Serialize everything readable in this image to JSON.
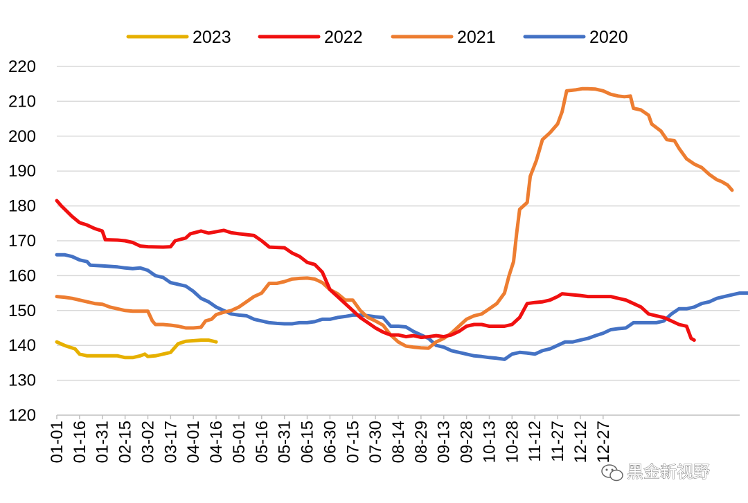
{
  "chart_data": {
    "type": "line",
    "title": "",
    "xlabel": "",
    "ylabel": "",
    "ylim": [
      120,
      220
    ],
    "yticks": [
      120,
      130,
      140,
      150,
      160,
      170,
      180,
      190,
      200,
      210,
      220
    ],
    "x_tick_labels": [
      "01-01",
      "01-16",
      "01-31",
      "02-15",
      "03-02",
      "03-17",
      "04-01",
      "04-16",
      "05-01",
      "05-16",
      "05-31",
      "06-15",
      "06-30",
      "07-15",
      "07-30",
      "08-14",
      "08-29",
      "09-13",
      "09-28",
      "10-13",
      "10-28",
      "11-12",
      "11-27",
      "12-12",
      "12-27"
    ],
    "x_unit": "day of year (0 = 01-01)",
    "grid": true,
    "legend_position": "top",
    "series": [
      {
        "name": "2023",
        "color": "#E6B000",
        "points": [
          [
            0,
            141
          ],
          [
            5,
            140
          ],
          [
            12,
            139
          ],
          [
            15,
            137.5
          ],
          [
            20,
            137
          ],
          [
            30,
            137
          ],
          [
            40,
            137
          ],
          [
            45,
            136.5
          ],
          [
            50,
            136.5
          ],
          [
            55,
            137
          ],
          [
            58,
            137.5
          ],
          [
            60,
            136.8
          ],
          [
            65,
            137
          ],
          [
            70,
            137.5
          ],
          [
            75,
            138
          ],
          [
            80,
            140.5
          ],
          [
            85,
            141.2
          ],
          [
            95,
            141.5
          ],
          [
            100,
            141.5
          ],
          [
            105,
            141
          ]
        ]
      },
      {
        "name": "2022",
        "color": "#F01010",
        "points": [
          [
            0,
            181.5
          ],
          [
            3,
            180
          ],
          [
            10,
            177
          ],
          [
            15,
            175.2
          ],
          [
            20,
            174.5
          ],
          [
            25,
            173.5
          ],
          [
            30,
            172.8
          ],
          [
            32,
            170.3
          ],
          [
            40,
            170.2
          ],
          [
            45,
            170
          ],
          [
            50,
            169.5
          ],
          [
            55,
            168.5
          ],
          [
            60,
            168.3
          ],
          [
            70,
            168.2
          ],
          [
            75,
            168.3
          ],
          [
            78,
            170
          ],
          [
            85,
            170.8
          ],
          [
            88,
            172
          ],
          [
            95,
            172.8
          ],
          [
            100,
            172.2
          ],
          [
            110,
            173
          ],
          [
            115,
            172.3
          ],
          [
            120,
            172
          ],
          [
            130,
            171.5
          ],
          [
            135,
            170
          ],
          [
            140,
            168.2
          ],
          [
            150,
            168
          ],
          [
            155,
            166.5
          ],
          [
            160,
            165.5
          ],
          [
            165,
            163.8
          ],
          [
            170,
            163.2
          ],
          [
            175,
            161
          ],
          [
            180,
            156
          ],
          [
            185,
            154
          ],
          [
            190,
            152
          ],
          [
            195,
            150
          ],
          [
            200,
            148
          ],
          [
            205,
            146.5
          ],
          [
            210,
            145
          ],
          [
            215,
            143.8
          ],
          [
            220,
            143
          ],
          [
            225,
            143
          ],
          [
            230,
            142.5
          ],
          [
            235,
            142.8
          ],
          [
            240,
            142.3
          ],
          [
            245,
            142.5
          ],
          [
            250,
            142.8
          ],
          [
            255,
            142.5
          ],
          [
            260,
            143
          ],
          [
            265,
            144
          ],
          [
            270,
            145.5
          ],
          [
            275,
            146
          ],
          [
            280,
            146
          ],
          [
            285,
            145.5
          ],
          [
            290,
            145.5
          ],
          [
            295,
            145.5
          ],
          [
            300,
            146
          ],
          [
            305,
            148
          ],
          [
            310,
            152
          ],
          [
            315,
            152.3
          ],
          [
            320,
            152.5
          ],
          [
            325,
            153
          ],
          [
            330,
            154
          ],
          [
            333,
            154.8
          ],
          [
            340,
            154.5
          ],
          [
            345,
            154.3
          ],
          [
            350,
            154
          ],
          [
            355,
            154
          ],
          [
            360,
            154
          ],
          [
            365,
            154
          ],
          [
            370,
            153.5
          ],
          [
            375,
            153
          ],
          [
            380,
            152
          ],
          [
            385,
            151
          ],
          [
            390,
            149
          ],
          [
            395,
            148.5
          ],
          [
            400,
            148
          ],
          [
            405,
            147
          ],
          [
            410,
            146
          ],
          [
            415,
            145.5
          ],
          [
            418,
            142
          ],
          [
            420,
            141.5
          ]
        ]
      },
      {
        "name": "2021",
        "color": "#ED7D31",
        "points": [
          [
            0,
            154
          ],
          [
            5,
            153.8
          ],
          [
            10,
            153.5
          ],
          [
            15,
            153
          ],
          [
            20,
            152.5
          ],
          [
            25,
            152
          ],
          [
            30,
            151.8
          ],
          [
            35,
            151
          ],
          [
            40,
            150.5
          ],
          [
            45,
            150
          ],
          [
            50,
            149.8
          ],
          [
            55,
            149.8
          ],
          [
            60,
            149.8
          ],
          [
            63,
            147
          ],
          [
            65,
            146
          ],
          [
            70,
            146
          ],
          [
            75,
            145.8
          ],
          [
            80,
            145.5
          ],
          [
            85,
            145
          ],
          [
            90,
            145
          ],
          [
            95,
            145.2
          ],
          [
            98,
            147
          ],
          [
            102,
            147.5
          ],
          [
            105,
            148.8
          ],
          [
            110,
            149.5
          ],
          [
            115,
            150
          ],
          [
            120,
            151
          ],
          [
            125,
            152.5
          ],
          [
            130,
            154
          ],
          [
            135,
            155
          ],
          [
            140,
            157.8
          ],
          [
            145,
            157.8
          ],
          [
            150,
            158.3
          ],
          [
            155,
            159
          ],
          [
            160,
            159.2
          ],
          [
            165,
            159.3
          ],
          [
            170,
            159
          ],
          [
            175,
            158
          ],
          [
            180,
            156
          ],
          [
            185,
            154.8
          ],
          [
            190,
            153
          ],
          [
            195,
            153
          ],
          [
            200,
            150
          ],
          [
            205,
            148
          ],
          [
            210,
            147
          ],
          [
            215,
            145.8
          ],
          [
            220,
            143
          ],
          [
            225,
            141
          ],
          [
            230,
            139.8
          ],
          [
            235,
            139.5
          ],
          [
            240,
            139.3
          ],
          [
            245,
            139.2
          ],
          [
            250,
            141
          ],
          [
            255,
            142
          ],
          [
            260,
            143.5
          ],
          [
            265,
            145.5
          ],
          [
            270,
            147.5
          ],
          [
            275,
            148.5
          ],
          [
            280,
            149
          ],
          [
            285,
            150.5
          ],
          [
            290,
            152
          ],
          [
            295,
            155
          ],
          [
            298,
            160
          ],
          [
            301,
            164
          ],
          [
            303,
            172
          ],
          [
            305,
            179
          ],
          [
            310,
            181
          ],
          [
            312,
            188.5
          ],
          [
            316,
            193
          ],
          [
            320,
            199
          ],
          [
            325,
            201
          ],
          [
            330,
            203.5
          ],
          [
            333,
            207
          ],
          [
            336,
            213
          ],
          [
            342,
            213.3
          ],
          [
            346,
            213.6
          ],
          [
            350,
            213.6
          ],
          [
            355,
            213.5
          ],
          [
            360,
            213
          ],
          [
            365,
            212
          ],
          [
            370,
            211.5
          ],
          [
            374,
            211.3
          ],
          [
            378,
            211.5
          ],
          [
            380,
            208
          ],
          [
            385,
            207.5
          ],
          [
            390,
            206
          ],
          [
            392,
            203.5
          ],
          [
            398,
            201.5
          ],
          [
            402,
            199
          ],
          [
            407,
            198.7
          ],
          [
            410,
            196.5
          ],
          [
            415,
            193.5
          ],
          [
            420,
            192
          ],
          [
            425,
            191
          ],
          [
            430,
            189
          ],
          [
            435,
            187.5
          ],
          [
            438,
            187
          ],
          [
            442,
            186
          ],
          [
            445,
            184.5
          ]
        ]
      },
      {
        "name": "2020",
        "color": "#4472C4",
        "points": [
          [
            0,
            166
          ],
          [
            5,
            166
          ],
          [
            10,
            165.5
          ],
          [
            15,
            164.5
          ],
          [
            20,
            164
          ],
          [
            22,
            163
          ],
          [
            30,
            162.8
          ],
          [
            40,
            162.5
          ],
          [
            45,
            162.2
          ],
          [
            50,
            162
          ],
          [
            55,
            162.2
          ],
          [
            60,
            161.5
          ],
          [
            65,
            160
          ],
          [
            70,
            159.5
          ],
          [
            75,
            158
          ],
          [
            80,
            157.5
          ],
          [
            85,
            157
          ],
          [
            90,
            155.5
          ],
          [
            95,
            153.5
          ],
          [
            100,
            152.5
          ],
          [
            105,
            151
          ],
          [
            110,
            150
          ],
          [
            115,
            149
          ],
          [
            120,
            148.7
          ],
          [
            125,
            148.5
          ],
          [
            130,
            147.5
          ],
          [
            135,
            147
          ],
          [
            140,
            146.5
          ],
          [
            145,
            146.3
          ],
          [
            150,
            146.2
          ],
          [
            155,
            146.2
          ],
          [
            160,
            146.5
          ],
          [
            165,
            146.5
          ],
          [
            170,
            146.8
          ],
          [
            175,
            147.5
          ],
          [
            180,
            147.5
          ],
          [
            185,
            148
          ],
          [
            190,
            148.3
          ],
          [
            195,
            148.7
          ],
          [
            200,
            148.7
          ],
          [
            205,
            148.5
          ],
          [
            210,
            148.2
          ],
          [
            215,
            148
          ],
          [
            220,
            145.5
          ],
          [
            225,
            145.5
          ],
          [
            230,
            145.3
          ],
          [
            235,
            144
          ],
          [
            240,
            143
          ],
          [
            245,
            142
          ],
          [
            250,
            140
          ],
          [
            255,
            139.5
          ],
          [
            260,
            138.5
          ],
          [
            265,
            138
          ],
          [
            270,
            137.5
          ],
          [
            275,
            137
          ],
          [
            280,
            136.8
          ],
          [
            285,
            136.5
          ],
          [
            290,
            136.3
          ],
          [
            295,
            136
          ],
          [
            300,
            137.5
          ],
          [
            305,
            138
          ],
          [
            310,
            137.8
          ],
          [
            315,
            137.5
          ],
          [
            320,
            138.5
          ],
          [
            325,
            139
          ],
          [
            330,
            140
          ],
          [
            335,
            141
          ],
          [
            340,
            141
          ],
          [
            345,
            141.5
          ],
          [
            350,
            142
          ],
          [
            355,
            142.8
          ],
          [
            360,
            143.5
          ],
          [
            365,
            144.5
          ],
          [
            370,
            144.8
          ],
          [
            375,
            145
          ],
          [
            380,
            146.5
          ],
          [
            385,
            146.5
          ],
          [
            390,
            146.5
          ],
          [
            395,
            146.5
          ],
          [
            400,
            147
          ],
          [
            405,
            149
          ],
          [
            410,
            150.5
          ],
          [
            415,
            150.5
          ],
          [
            420,
            151
          ],
          [
            425,
            152
          ],
          [
            430,
            152.5
          ],
          [
            435,
            153.5
          ],
          [
            440,
            154
          ],
          [
            445,
            154.5
          ],
          [
            450,
            155
          ],
          [
            455,
            155
          ],
          [
            460,
            155
          ],
          [
            465,
            155
          ],
          [
            470,
            155.2
          ],
          [
            475,
            155.3
          ],
          [
            480,
            155.2
          ],
          [
            485,
            155
          ],
          [
            488,
            154.8
          ]
        ]
      }
    ]
  },
  "watermark": {
    "text": "黑金新视野",
    "icon": "wechat-icon"
  }
}
